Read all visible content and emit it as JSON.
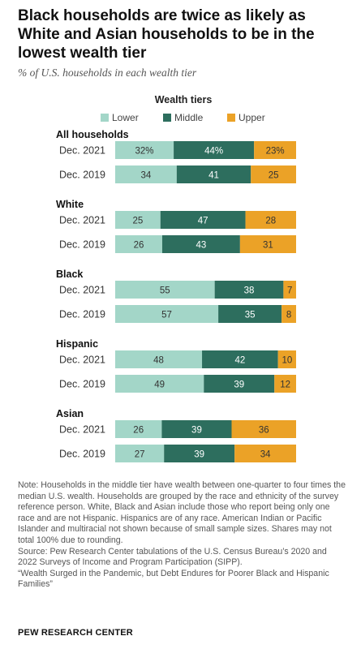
{
  "header": {
    "title": "Black households are twice as likely as White and Asian households to be in the lowest wealth tier",
    "subtitle": "% of U.S. households in each wealth tier"
  },
  "chart_data": {
    "type": "bar",
    "orientation": "horizontal",
    "stacked": true,
    "legend_title": "Wealth tiers",
    "legend_position": "top",
    "xlim": [
      0,
      100
    ],
    "series": [
      {
        "name": "Lower",
        "color": "#a3d6c8"
      },
      {
        "name": "Middle",
        "color": "#2d6e5e"
      },
      {
        "name": "Upper",
        "color": "#eba227"
      }
    ],
    "groups": [
      {
        "name": "All households",
        "rows": [
          {
            "label": "Dec. 2021",
            "values": [
              32,
              44,
              23
            ],
            "value_labels": [
              "32%",
              "44%",
              "23%"
            ]
          },
          {
            "label": "Dec. 2019",
            "values": [
              34,
              41,
              25
            ],
            "value_labels": [
              "34",
              "41",
              "25"
            ]
          }
        ]
      },
      {
        "name": "White",
        "rows": [
          {
            "label": "Dec. 2021",
            "values": [
              25,
              47,
              28
            ],
            "value_labels": [
              "25",
              "47",
              "28"
            ]
          },
          {
            "label": "Dec. 2019",
            "values": [
              26,
              43,
              31
            ],
            "value_labels": [
              "26",
              "43",
              "31"
            ]
          }
        ]
      },
      {
        "name": "Black",
        "rows": [
          {
            "label": "Dec. 2021",
            "values": [
              55,
              38,
              7
            ],
            "value_labels": [
              "55",
              "38",
              "7"
            ]
          },
          {
            "label": "Dec. 2019",
            "values": [
              57,
              35,
              8
            ],
            "value_labels": [
              "57",
              "35",
              "8"
            ]
          }
        ]
      },
      {
        "name": "Hispanic",
        "rows": [
          {
            "label": "Dec. 2021",
            "values": [
              48,
              42,
              10
            ],
            "value_labels": [
              "48",
              "42",
              "10"
            ]
          },
          {
            "label": "Dec. 2019",
            "values": [
              49,
              39,
              12
            ],
            "value_labels": [
              "49",
              "39",
              "12"
            ]
          }
        ]
      },
      {
        "name": "Asian",
        "rows": [
          {
            "label": "Dec. 2021",
            "values": [
              26,
              39,
              36
            ],
            "value_labels": [
              "26",
              "39",
              "36"
            ]
          },
          {
            "label": "Dec. 2019",
            "values": [
              27,
              39,
              34
            ],
            "value_labels": [
              "27",
              "39",
              "34"
            ]
          }
        ]
      }
    ]
  },
  "footer": {
    "note": "Note: Households in the middle tier have wealth between one-quarter to four times the median U.S. wealth. Households are grouped by the race and ethnicity of the survey reference person. White, Black and Asian include those who report being only one race and are not Hispanic. Hispanics are of any race. American Indian or Pacific Islander and multiracial not shown because of small sample sizes. Shares may not total 100% due to rounding.",
    "source": "Source: Pew Research Center tabulations of the U.S. Census Bureau’s 2020 and 2022 Surveys of Income and Program Participation (SIPP).",
    "report": "“Wealth Surged in the Pandemic, but Debt Endures for Poorer Black and Hispanic Families”",
    "brand": "PEW RESEARCH CENTER"
  }
}
